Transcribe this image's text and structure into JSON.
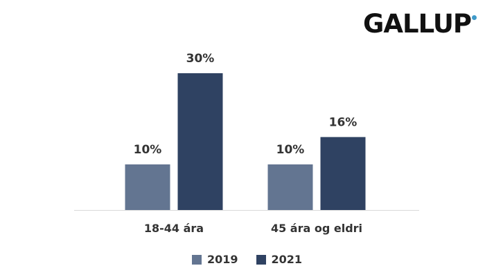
{
  "logo": {
    "text": "GALLUP",
    "dot_color": "#3f9ac9"
  },
  "colors": {
    "series_2019": "#637591",
    "series_2021": "#2f4262",
    "axis": "#d9d9d9",
    "label": "#333333"
  },
  "chart_data": {
    "type": "bar",
    "categories": [
      "18-44 ára",
      "45 ára og eldri"
    ],
    "series": [
      {
        "name": "2019",
        "values": [
          10,
          10
        ],
        "labels": [
          "10%",
          "10%"
        ]
      },
      {
        "name": "2021",
        "values": [
          30,
          16
        ],
        "labels": [
          "30%",
          "16%"
        ]
      }
    ],
    "ylim": [
      0,
      30
    ],
    "grid": false,
    "legend_position": "bottom"
  }
}
